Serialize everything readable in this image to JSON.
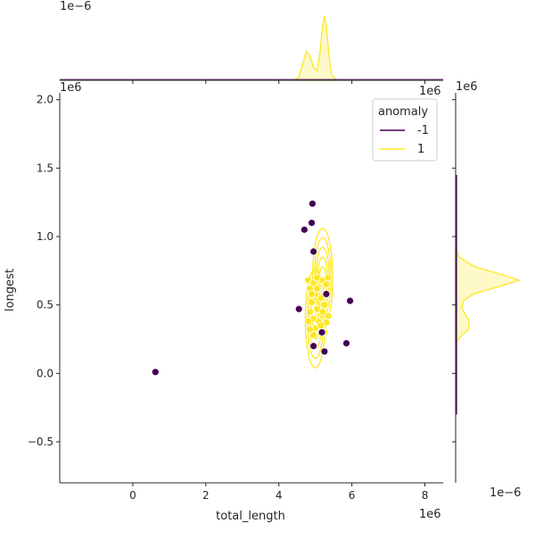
{
  "chart_data": {
    "type": "scatter",
    "subtype": "jointplot with KDE contours and marginal densities",
    "title": "",
    "xlabel": "total_length",
    "ylabel": "longest",
    "x_offset_label": "1e6",
    "y_offset_label": "1e6",
    "x_ticks": [
      "0",
      "2",
      "4",
      "6",
      "8"
    ],
    "y_ticks": [
      "−0.5",
      "0.0",
      "0.5",
      "1.0",
      "1.5",
      "2.0"
    ],
    "xlim": [
      -2,
      8.5
    ],
    "ylim": [
      -0.8,
      2.05
    ],
    "grid": false,
    "legend": {
      "title": "anomaly",
      "placement": "top-right",
      "entries": [
        {
          "label": "-1",
          "color": "#440154"
        },
        {
          "label": "1",
          "color": "#fde725"
        }
      ]
    },
    "series": [
      {
        "name": "-1",
        "color": "#440154",
        "points": [
          [
            0.62,
            0.01
          ],
          [
            4.92,
            1.24
          ],
          [
            4.9,
            1.1
          ],
          [
            4.7,
            1.05
          ],
          [
            4.95,
            0.89
          ],
          [
            4.55,
            0.47
          ],
          [
            5.3,
            0.58
          ],
          [
            5.95,
            0.53
          ],
          [
            5.85,
            0.22
          ],
          [
            4.95,
            0.2
          ],
          [
            5.25,
            0.16
          ],
          [
            5.18,
            0.3
          ]
        ]
      },
      {
        "name": "1",
        "color": "#fde725",
        "points": [
          [
            4.8,
            0.68
          ],
          [
            4.85,
            0.62
          ],
          [
            4.95,
            0.66
          ],
          [
            5.05,
            0.7
          ],
          [
            5.1,
            0.63
          ],
          [
            5.2,
            0.68
          ],
          [
            5.3,
            0.65
          ],
          [
            5.35,
            0.7
          ],
          [
            5.0,
            0.58
          ],
          [
            5.15,
            0.55
          ],
          [
            4.9,
            0.52
          ],
          [
            5.25,
            0.5
          ],
          [
            5.05,
            0.47
          ],
          [
            4.85,
            0.45
          ],
          [
            5.2,
            0.45
          ],
          [
            5.35,
            0.42
          ],
          [
            4.95,
            0.4
          ],
          [
            5.1,
            0.38
          ],
          [
            4.8,
            0.38
          ],
          [
            5.3,
            0.37
          ],
          [
            5.0,
            0.33
          ],
          [
            4.85,
            0.32
          ],
          [
            5.15,
            0.35
          ],
          [
            5.25,
            0.3
          ],
          [
            4.95,
            0.28
          ],
          [
            5.05,
            0.62
          ],
          [
            4.9,
            0.58
          ]
        ]
      }
    ],
    "kde_contours": {
      "color": "#fde725",
      "centers": [
        [
          5.2,
          0.7
        ],
        [
          5.0,
          0.4
        ]
      ],
      "levels": [
        {
          "rx": 0.55,
          "ry": 0.36
        },
        {
          "rx": 0.45,
          "ry": 0.29
        },
        {
          "rx": 0.36,
          "ry": 0.22
        },
        {
          "rx": 0.27,
          "ry": 0.15
        },
        {
          "rx": 0.17,
          "ry": 0.08
        }
      ]
    },
    "marginal_x": {
      "offset_label": "1e−6",
      "density": [
        [
          4.4,
          0.0
        ],
        [
          4.55,
          0.05
        ],
        [
          4.65,
          0.25
        ],
        [
          4.75,
          0.45
        ],
        [
          4.85,
          0.38
        ],
        [
          4.95,
          0.2
        ],
        [
          5.05,
          0.15
        ],
        [
          5.12,
          0.4
        ],
        [
          5.2,
          0.85
        ],
        [
          5.25,
          1.0
        ],
        [
          5.3,
          0.85
        ],
        [
          5.38,
          0.35
        ],
        [
          5.45,
          0.08
        ],
        [
          5.6,
          0.0
        ]
      ]
    },
    "marginal_y": {
      "offset_label": "1e−6",
      "density": [
        [
          0.22,
          0.0
        ],
        [
          0.28,
          0.1
        ],
        [
          0.32,
          0.2
        ],
        [
          0.38,
          0.22
        ],
        [
          0.43,
          0.15
        ],
        [
          0.48,
          0.1
        ],
        [
          0.53,
          0.12
        ],
        [
          0.58,
          0.28
        ],
        [
          0.63,
          0.65
        ],
        [
          0.68,
          1.0
        ],
        [
          0.72,
          0.75
        ],
        [
          0.78,
          0.3
        ],
        [
          0.85,
          0.05
        ],
        [
          0.92,
          0.0
        ]
      ]
    }
  }
}
